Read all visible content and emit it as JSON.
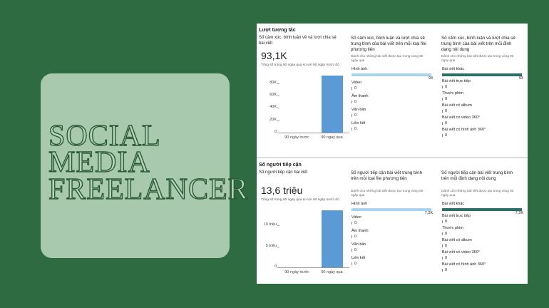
{
  "poster": {
    "title_lines": [
      "SOCIAL",
      "MEDIA",
      "FREELANCER"
    ]
  },
  "sections": [
    {
      "heading": "Lượt tương tác",
      "summary": {
        "title": "Số cảm xúc, bình luận về và lượt chia sẻ bài viết",
        "total": "93,1K",
        "note": "Tổng số trong 90 ngày qua so với 90 ngày trước đó",
        "chart_data": {
          "type": "bar",
          "categories": [
            "90 ngày trước",
            "90 ngày qua"
          ],
          "values": [
            0,
            93100
          ],
          "color": "#5b9bd5",
          "ylim": [
            0,
            95000
          ],
          "yticks": [
            0,
            {
              "value": 20000,
              "label": "20K"
            },
            {
              "value": 40000,
              "label": "40K"
            },
            {
              "value": 60000,
              "label": "60K"
            },
            {
              "value": 80000,
              "label": "80K"
            }
          ]
        }
      },
      "breakdowns": [
        {
          "title": "Số cảm xúc, bình luận và lượt chia sẻ trung bình của bài viết trên mỗi loại file phương tiện",
          "subtitle": "Dành cho những bài viết được tạo trong vòng 90 ngày qua",
          "color": "#a8d4ef",
          "items": [
            {
              "label": "Hình ảnh",
              "value": 93
            },
            {
              "label": "Video",
              "value": 0
            },
            {
              "label": "Âm thanh",
              "value": 0
            },
            {
              "label": "Văn bản",
              "value": 0
            },
            {
              "label": "Liên kết",
              "value": 0
            }
          ]
        },
        {
          "title": "Số cảm xúc, bình luận và lượt chia sẻ trung bình của bài viết trên mỗi định dạng nội dung",
          "subtitle": "Dành cho những bài viết được tạo trong vòng 90 ngày qua",
          "color": "#2c6e68",
          "items": [
            {
              "label": "Bài viết khác",
              "value": 93
            },
            {
              "label": "Bài viết trực tiếp",
              "value": 0
            },
            {
              "label": "Thước phim",
              "value": 0
            },
            {
              "label": "Bài viết có album",
              "value": 0
            },
            {
              "label": "Bài viết có video 360°",
              "value": 0
            },
            {
              "label": "Bài viết có hình ảnh 360°",
              "value": 0
            }
          ]
        }
      ]
    },
    {
      "heading": "Số người tiếp cận",
      "summary": {
        "title": "Số người tiếp cận bài viết",
        "total": "13,6 triệu",
        "note": "Tổng số trong 90 ngày qua so với 90 ngày trước đó",
        "chart_data": {
          "type": "bar",
          "categories": [
            "90 ngày trước",
            "90 ngày qua"
          ],
          "values": [
            0,
            13600000
          ],
          "color": "#5b9bd5",
          "ylim": [
            0,
            14000000
          ],
          "yticks": [
            0,
            {
              "value": 5000000,
              "label": "5 triệu"
            },
            {
              "value": 10000000,
              "label": "10 triệu"
            }
          ]
        }
      },
      "breakdowns": [
        {
          "title": "Số người tiếp cận bài viết trung bình trên mỗi loại file phương tiện",
          "subtitle": "Dành cho những bài viết được tạo trong vòng 90 ngày qua",
          "color": "#a8d4ef",
          "items": [
            {
              "label": "Hình ảnh",
              "value": 7200,
              "value_label": "7,2K"
            },
            {
              "label": "Video",
              "value": 0
            },
            {
              "label": "Âm thanh",
              "value": 0
            },
            {
              "label": "Văn bản",
              "value": 0
            },
            {
              "label": "Liên kết",
              "value": 0
            }
          ]
        },
        {
          "title": "Số người tiếp cận bài viết trung bình trên mỗi định dạng nội dung",
          "subtitle": "Dành cho những bài viết được tạo trong vòng 90 ngày qua",
          "color": "#2c6e68",
          "items": [
            {
              "label": "Bài viết khác",
              "value": 7200,
              "value_label": "7,2K"
            },
            {
              "label": "Bài viết trực tiếp",
              "value": 0
            },
            {
              "label": "Thước phim",
              "value": 0
            },
            {
              "label": "Bài viết có album",
              "value": 0
            },
            {
              "label": "Bài viết có video 360°",
              "value": 0
            },
            {
              "label": "Bài viết có hình ảnh 360°",
              "value": 0
            }
          ]
        }
      ]
    }
  ]
}
